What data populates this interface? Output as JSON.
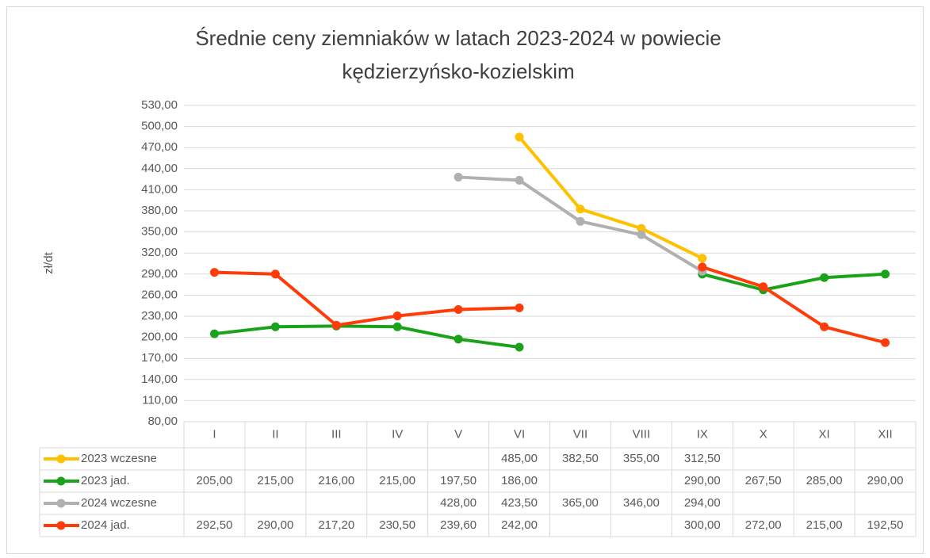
{
  "chart_data": {
    "type": "line",
    "title": [
      "Średnie ceny ziemniaków w latach 2023-2024 w powiecie",
      "kędzierzyńsko-kozielskim"
    ],
    "y_label": "zł/dt",
    "categories": [
      "I",
      "II",
      "III",
      "IV",
      "V",
      "VI",
      "VII",
      "VIII",
      "IX",
      "X",
      "XI",
      "XII"
    ],
    "ylim": [
      80,
      530
    ],
    "yticks": [
      {
        "value": 80,
        "label": "80,00"
      },
      {
        "value": 110,
        "label": "110,00"
      },
      {
        "value": 140,
        "label": "140,00"
      },
      {
        "value": 170,
        "label": "170,00"
      },
      {
        "value": 200,
        "label": "200,00"
      },
      {
        "value": 230,
        "label": "230,00"
      },
      {
        "value": 260,
        "label": "260,00"
      },
      {
        "value": 290,
        "label": "290,00"
      },
      {
        "value": 320,
        "label": "320,00"
      },
      {
        "value": 350,
        "label": "350,00"
      },
      {
        "value": 380,
        "label": "380,00"
      },
      {
        "value": 410,
        "label": "410,00"
      },
      {
        "value": 440,
        "label": "440,00"
      },
      {
        "value": 470,
        "label": "470,00"
      },
      {
        "value": 500,
        "label": "500,00"
      },
      {
        "value": 530,
        "label": "530,00"
      }
    ],
    "grid": true,
    "series": [
      {
        "name": "2023 wczesne",
        "color": "#ffc000",
        "values": [
          null,
          null,
          null,
          null,
          null,
          485,
          382.5,
          355,
          312.5,
          null,
          null,
          null
        ],
        "value_labels": [
          null,
          null,
          null,
          null,
          null,
          "485,00",
          "382,50",
          "355,00",
          "312,50",
          null,
          null,
          null
        ]
      },
      {
        "name": "2023 jad.",
        "color": "#1aa31a",
        "values": [
          205,
          215,
          216,
          215,
          197.5,
          186,
          null,
          null,
          290,
          267.5,
          285,
          290
        ],
        "value_labels": [
          "205,00",
          "215,00",
          "216,00",
          "215,00",
          "197,50",
          "186,00",
          null,
          null,
          "290,00",
          "267,50",
          "285,00",
          "290,00"
        ]
      },
      {
        "name": "2024 wczesne",
        "color": "#b0b0b0",
        "values": [
          null,
          null,
          null,
          null,
          428,
          423.5,
          365,
          346,
          294,
          null,
          null,
          null
        ],
        "value_labels": [
          null,
          null,
          null,
          null,
          "428,00",
          "423,50",
          "365,00",
          "346,00",
          "294,00",
          null,
          null,
          null
        ]
      },
      {
        "name": "2024 jad.",
        "color": "#ff3b0a",
        "values": [
          292.5,
          290,
          217.2,
          230.5,
          239.6,
          242,
          null,
          null,
          300,
          272,
          215,
          192.5
        ],
        "value_labels": [
          "292,50",
          "290,00",
          "217,20",
          "230,50",
          "239,60",
          "242,00",
          null,
          null,
          "300,00",
          "272,00",
          "215,00",
          "192,50"
        ]
      }
    ]
  }
}
